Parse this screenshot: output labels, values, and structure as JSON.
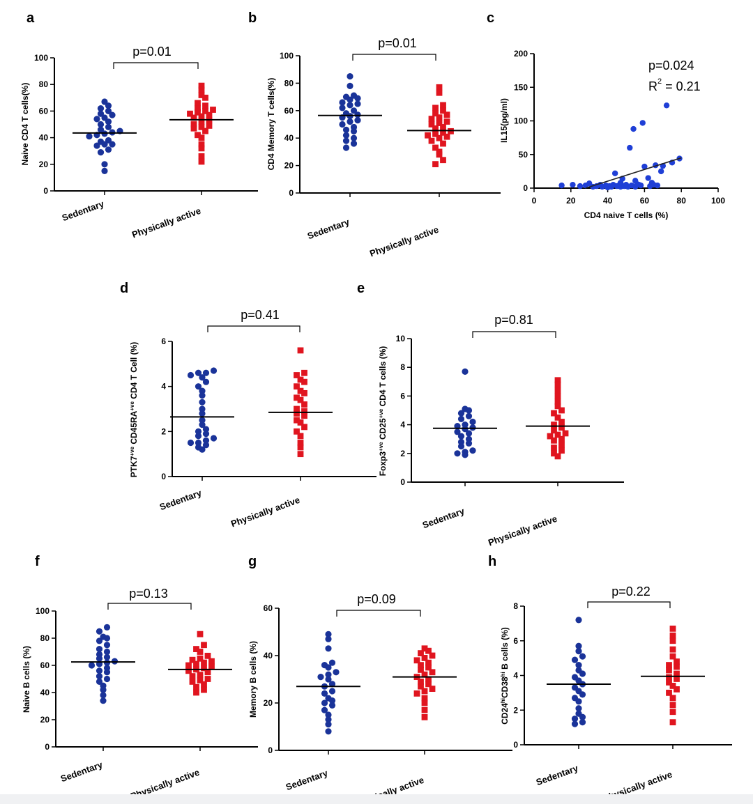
{
  "colors": {
    "sedentary": "#1a3399",
    "active": "#e0151f",
    "scatter": "#1f3fd6",
    "bg": "#ffffff"
  },
  "chart_data": [
    {
      "id": "a",
      "type": "scatter",
      "panel_label": "a",
      "ylabel": "Naive CD4 T cells(%)",
      "ylim": [
        0,
        100
      ],
      "yticks": [
        0,
        20,
        40,
        60,
        80,
        100
      ],
      "categories": [
        "Sedentary",
        "Physically active"
      ],
      "pvalue": "p=0.01",
      "series": [
        {
          "marker": "circle",
          "mean": 43.5,
          "values": [
            15,
            20,
            29,
            31,
            34,
            35,
            35,
            37,
            38,
            41,
            42,
            43,
            44,
            45,
            46,
            48,
            50,
            52,
            54,
            55,
            57,
            58,
            60,
            62,
            64,
            67
          ]
        },
        {
          "marker": "square",
          "mean": 53.5,
          "values": [
            22,
            26,
            32,
            35,
            40,
            42,
            45,
            47,
            48,
            49,
            50,
            52,
            53,
            55,
            56,
            57,
            58,
            59,
            60,
            61,
            62,
            64,
            66,
            70,
            72,
            76,
            79
          ]
        }
      ]
    },
    {
      "id": "b",
      "type": "scatter",
      "panel_label": "b",
      "ylabel": "CD4 Memory T cells(%)",
      "ylim": [
        0,
        100
      ],
      "yticks": [
        0,
        20,
        40,
        60,
        80,
        100
      ],
      "categories": [
        "Sedentary",
        "Physically active"
      ],
      "pvalue": "p=0.01",
      "series": [
        {
          "marker": "circle",
          "mean": 56.5,
          "values": [
            33,
            36,
            38,
            40,
            42,
            45,
            46,
            48,
            50,
            52,
            53,
            55,
            56,
            57,
            58,
            60,
            62,
            64,
            65,
            66,
            68,
            69,
            70,
            71,
            78,
            85
          ]
        },
        {
          "marker": "square",
          "mean": 45.5,
          "values": [
            21,
            24,
            28,
            30,
            33,
            36,
            38,
            40,
            41,
            42,
            43,
            44,
            45,
            47,
            48,
            50,
            51,
            52,
            54,
            55,
            57,
            58,
            60,
            62,
            64,
            73,
            77
          ]
        }
      ]
    },
    {
      "id": "c",
      "type": "scatter",
      "panel_label": "c",
      "xlabel": "CD4 naive T cells (%)",
      "ylabel": "IL15(pg/ml)",
      "xlim": [
        0,
        100
      ],
      "ylim": [
        0,
        200
      ],
      "xticks": [
        0,
        20,
        40,
        60,
        80,
        100
      ],
      "yticks": [
        0,
        50,
        100,
        150,
        200
      ],
      "annotation_p": "p=0.024",
      "annotation_r2": "R",
      "annotation_r2_sup": "2",
      "annotation_r2_value": " = 0.21",
      "fit": {
        "x": [
          28,
          80
        ],
        "y": [
          0,
          45
        ]
      },
      "points": [
        {
          "x": 15,
          "y": 4
        },
        {
          "x": 21,
          "y": 5
        },
        {
          "x": 25,
          "y": 3
        },
        {
          "x": 28,
          "y": 4
        },
        {
          "x": 30,
          "y": 7
        },
        {
          "x": 32,
          "y": 2
        },
        {
          "x": 34,
          "y": 3
        },
        {
          "x": 36,
          "y": 5
        },
        {
          "x": 37,
          "y": 2
        },
        {
          "x": 39,
          "y": 4
        },
        {
          "x": 40,
          "y": 1
        },
        {
          "x": 41,
          "y": 3
        },
        {
          "x": 42,
          "y": 2
        },
        {
          "x": 43,
          "y": 5
        },
        {
          "x": 44,
          "y": 22
        },
        {
          "x": 45,
          "y": 3
        },
        {
          "x": 46,
          "y": 4
        },
        {
          "x": 47,
          "y": 8
        },
        {
          "x": 47,
          "y": 2
        },
        {
          "x": 48,
          "y": 14
        },
        {
          "x": 49,
          "y": 3
        },
        {
          "x": 50,
          "y": 5
        },
        {
          "x": 51,
          "y": 2
        },
        {
          "x": 52,
          "y": 60
        },
        {
          "x": 53,
          "y": 4
        },
        {
          "x": 54,
          "y": 88
        },
        {
          "x": 55,
          "y": 11
        },
        {
          "x": 55,
          "y": 2
        },
        {
          "x": 56,
          "y": 6
        },
        {
          "x": 57,
          "y": 5
        },
        {
          "x": 58,
          "y": 4
        },
        {
          "x": 59,
          "y": 97
        },
        {
          "x": 60,
          "y": 32
        },
        {
          "x": 62,
          "y": 15
        },
        {
          "x": 63,
          "y": 3
        },
        {
          "x": 64,
          "y": 8
        },
        {
          "x": 65,
          "y": 5
        },
        {
          "x": 66,
          "y": 34
        },
        {
          "x": 67,
          "y": 4
        },
        {
          "x": 69,
          "y": 25
        },
        {
          "x": 70,
          "y": 33
        },
        {
          "x": 72,
          "y": 123
        },
        {
          "x": 75,
          "y": 38
        },
        {
          "x": 79,
          "y": 44
        }
      ]
    },
    {
      "id": "d",
      "type": "scatter",
      "panel_label": "d",
      "ylabel_parts": [
        {
          "t": "PTK7",
          "sup": false
        },
        {
          "t": "+ve",
          "sup": true
        },
        {
          "t": " CD45RA",
          "sup": false
        },
        {
          "t": "+ve",
          "sup": true
        },
        {
          "t": " CD4 T Cell (%)",
          "sup": false
        }
      ],
      "ylim": [
        0,
        6
      ],
      "yticks": [
        0,
        2,
        4,
        6
      ],
      "categories": [
        "Sedentary",
        "Physically active"
      ],
      "pvalue": "p=0.41",
      "series": [
        {
          "marker": "circle",
          "mean": 2.65,
          "values": [
            1.2,
            1.3,
            1.4,
            1.5,
            1.5,
            1.6,
            1.7,
            1.8,
            1.9,
            2.0,
            2.1,
            2.3,
            2.5,
            2.8,
            3.0,
            3.3,
            3.6,
            3.8,
            4.0,
            4.2,
            4.4,
            4.5,
            4.6,
            4.6,
            4.7
          ]
        },
        {
          "marker": "square",
          "mean": 2.85,
          "values": [
            1.0,
            1.3,
            1.5,
            1.8,
            2.0,
            2.2,
            2.4,
            2.5,
            2.7,
            2.8,
            2.9,
            3.0,
            3.2,
            3.4,
            3.5,
            3.7,
            3.8,
            4.0,
            4.2,
            4.3,
            4.5,
            4.6,
            5.6
          ]
        }
      ]
    },
    {
      "id": "e",
      "type": "scatter",
      "panel_label": "e",
      "ylabel_parts": [
        {
          "t": "Foxp3",
          "sup": false
        },
        {
          "t": "+ve",
          "sup": true
        },
        {
          "t": " CD25",
          "sup": false
        },
        {
          "t": "+ve",
          "sup": true
        },
        {
          "t": " CD4 T cells (%)",
          "sup": false
        }
      ],
      "ylim": [
        0,
        10
      ],
      "yticks": [
        0,
        2,
        4,
        6,
        8,
        10
      ],
      "categories": [
        "Sedentary",
        "Physically active"
      ],
      "pvalue": "p=0.81",
      "series": [
        {
          "marker": "circle",
          "mean": 3.75,
          "values": [
            1.9,
            2.0,
            2.1,
            2.2,
            2.5,
            2.7,
            2.8,
            3.0,
            3.2,
            3.4,
            3.5,
            3.7,
            3.8,
            3.9,
            4.0,
            4.2,
            4.4,
            4.6,
            4.8,
            5.0,
            5.1,
            7.7
          ]
        },
        {
          "marker": "square",
          "mean": 3.9,
          "values": [
            1.8,
            2.0,
            2.2,
            2.4,
            2.6,
            2.9,
            3.0,
            3.2,
            3.3,
            3.4,
            3.6,
            3.8,
            4.0,
            4.2,
            4.5,
            4.8,
            5.0,
            5.3,
            5.6,
            6.0,
            6.4,
            6.8,
            7.1
          ]
        }
      ]
    },
    {
      "id": "f",
      "type": "scatter",
      "panel_label": "f",
      "ylabel": "Naive B cells (%)",
      "ylim": [
        0,
        100
      ],
      "yticks": [
        0,
        20,
        40,
        60,
        80,
        100
      ],
      "categories": [
        "Sedentary",
        "Physically active"
      ],
      "pvalue": "p=0.13",
      "series": [
        {
          "marker": "circle",
          "mean": 62.5,
          "values": [
            34,
            38,
            42,
            45,
            48,
            50,
            52,
            55,
            56,
            58,
            60,
            61,
            62,
            63,
            65,
            66,
            68,
            70,
            72,
            75,
            78,
            80,
            81,
            85,
            88
          ]
        },
        {
          "marker": "square",
          "mean": 57,
          "values": [
            40,
            42,
            44,
            46,
            48,
            49,
            50,
            52,
            53,
            55,
            56,
            57,
            58,
            59,
            60,
            61,
            62,
            63,
            64,
            65,
            67,
            70,
            72,
            75,
            83
          ]
        }
      ]
    },
    {
      "id": "g",
      "type": "scatter",
      "panel_label": "g",
      "ylabel": "Memory B  cells (%)",
      "ylim": [
        0,
        60
      ],
      "yticks": [
        0,
        20,
        40,
        60
      ],
      "categories": [
        "Sedentary",
        "Physically active"
      ],
      "pvalue": "p=0.09",
      "series": [
        {
          "marker": "circle",
          "mean": 27,
          "values": [
            8,
            11,
            13,
            15,
            17,
            19,
            20,
            21,
            22,
            24,
            25,
            27,
            28,
            30,
            31,
            32,
            33,
            35,
            36,
            37,
            43,
            47,
            49
          ]
        },
        {
          "marker": "square",
          "mean": 31,
          "values": [
            14,
            17,
            20,
            22,
            24,
            25,
            26,
            27,
            28,
            29,
            30,
            31,
            32,
            33,
            34,
            35,
            36,
            37,
            38,
            39,
            40,
            41,
            42,
            43
          ]
        }
      ]
    },
    {
      "id": "h",
      "type": "scatter",
      "panel_label": "h",
      "ylabel_parts": [
        {
          "t": "CD24",
          "sup": false
        },
        {
          "t": "hi",
          "sup": true
        },
        {
          "t": "CD38",
          "sup": false
        },
        {
          "t": "hi",
          "sup": true
        },
        {
          "t": " B cells (%)",
          "sup": false
        }
      ],
      "ylim": [
        0,
        8
      ],
      "yticks": [
        0,
        2,
        4,
        6,
        8
      ],
      "categories": [
        "Sedentary",
        "Physically active"
      ],
      "pvalue": "p=0.22",
      "series": [
        {
          "marker": "circle",
          "mean": 3.5,
          "values": [
            1.2,
            1.3,
            1.5,
            1.6,
            1.8,
            2.1,
            2.5,
            2.7,
            2.9,
            3.1,
            3.3,
            3.5,
            3.7,
            3.9,
            4.1,
            4.3,
            4.6,
            4.9,
            5.1,
            5.4,
            5.7,
            7.2
          ]
        },
        {
          "marker": "square",
          "mean": 3.95,
          "values": [
            1.3,
            1.9,
            2.3,
            2.7,
            3.0,
            3.2,
            3.4,
            3.6,
            3.8,
            3.9,
            4.1,
            4.3,
            4.5,
            4.6,
            4.8,
            5.1,
            5.5,
            6.0,
            6.3,
            6.7
          ]
        }
      ]
    }
  ]
}
